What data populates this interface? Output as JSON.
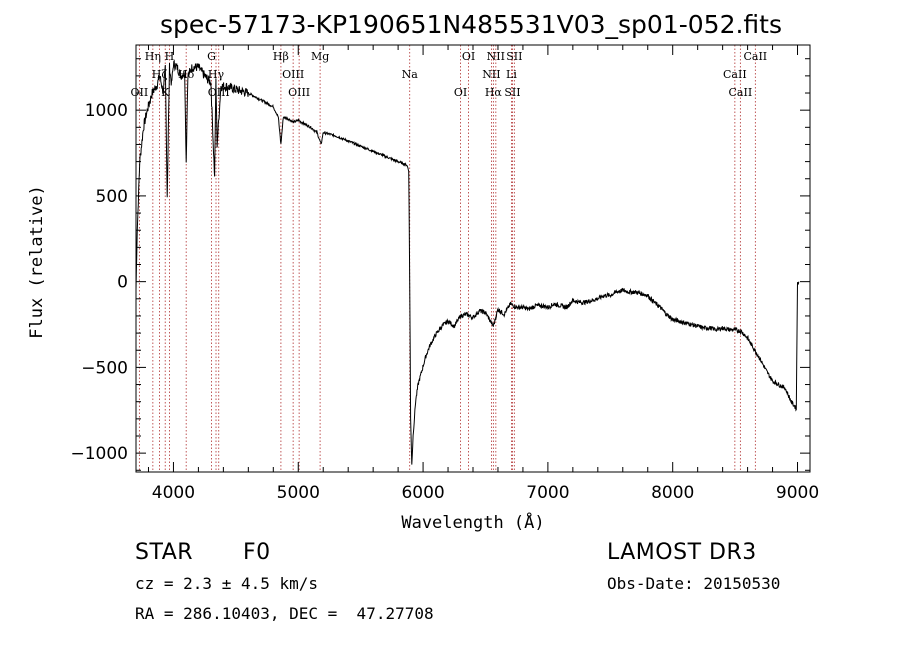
{
  "chart_data": {
    "type": "line",
    "title": "spec-57173-KP190651N485531V03_sp01-052.fits",
    "xlabel": "Wavelength (Å)",
    "ylabel": "Flux (relative)",
    "xlim": [
      3700,
      9100
    ],
    "ylim": [
      -1110,
      1380
    ],
    "xticks": [
      4000,
      5000,
      6000,
      7000,
      8000,
      9000
    ],
    "xtick_labels": [
      "4000",
      "5000",
      "6000",
      "7000",
      "8000",
      "9000"
    ],
    "yticks": [
      -1000,
      -500,
      0,
      500,
      1000
    ],
    "ytick_labels": [
      "−1000",
      "−500",
      "0",
      "500",
      "1000"
    ],
    "series": [
      {
        "name": "spectrum",
        "x": [
          3700,
          3710,
          3730,
          3760,
          3790,
          3830,
          3870,
          3890,
          3920,
          3935,
          3950,
          3968,
          3985,
          4000,
          4030,
          4060,
          4090,
          4102,
          4115,
          4150,
          4200,
          4250,
          4300,
          4330,
          4340,
          4350,
          4380,
          4420,
          4500,
          4600,
          4700,
          4800,
          4840,
          4861,
          4880,
          4920,
          4960,
          5000,
          5050,
          5100,
          5150,
          5183,
          5200,
          5300,
          5400,
          5500,
          5600,
          5700,
          5800,
          5870,
          5885,
          5893,
          5900,
          5910,
          5920,
          5940,
          5960,
          5990,
          6020,
          6050,
          6100,
          6150,
          6200,
          6250,
          6300,
          6350,
          6400,
          6450,
          6500,
          6563,
          6600,
          6650,
          6700,
          6750,
          6800,
          6850,
          6900,
          6950,
          7000,
          7050,
          7100,
          7150,
          7200,
          7250,
          7300,
          7350,
          7400,
          7450,
          7500,
          7550,
          7600,
          7650,
          7700,
          7750,
          7800,
          7850,
          7900,
          7950,
          8000,
          8050,
          8100,
          8150,
          8200,
          8250,
          8300,
          8350,
          8400,
          8450,
          8500,
          8550,
          8600,
          8650,
          8700,
          8750,
          8800,
          8850,
          8900,
          8950,
          8990,
          9000,
          9010
        ],
        "values": [
          -50,
          300,
          700,
          900,
          1000,
          1100,
          1150,
          1200,
          1100,
          1250,
          500,
          1250,
          1150,
          1270,
          1250,
          1200,
          1220,
          700,
          1200,
          1250,
          1250,
          1200,
          1160,
          600,
          1180,
          800,
          1140,
          1140,
          1120,
          1100,
          1060,
          1020,
          960,
          800,
          960,
          950,
          930,
          940,
          920,
          900,
          870,
          800,
          870,
          850,
          820,
          790,
          760,
          730,
          700,
          680,
          650,
          0,
          -800,
          -1060,
          -900,
          -700,
          -600,
          -520,
          -440,
          -380,
          -310,
          -260,
          -230,
          -260,
          -200,
          -190,
          -210,
          -170,
          -180,
          -260,
          -160,
          -190,
          -130,
          -150,
          -150,
          -160,
          -140,
          -140,
          -150,
          -130,
          -140,
          -150,
          -110,
          -120,
          -120,
          -110,
          -100,
          -80,
          -80,
          -60,
          -50,
          -60,
          -60,
          -70,
          -80,
          -120,
          -150,
          -190,
          -220,
          -230,
          -240,
          -250,
          -260,
          -270,
          -270,
          -280,
          -270,
          -280,
          -280,
          -290,
          -330,
          -390,
          -450,
          -520,
          -580,
          -600,
          -620,
          -700,
          -740,
          0,
          0
        ]
      }
    ],
    "lines": [
      {
        "name": "Hη",
        "x": 3835
      },
      {
        "name": "Hζ",
        "x": 3889
      },
      {
        "name": "K",
        "x": 3934
      },
      {
        "name": "H",
        "x": 3968
      },
      {
        "name": "Hδ",
        "x": 4102
      },
      {
        "name": "OII",
        "x": 3727
      },
      {
        "name": "G",
        "x": 4305
      },
      {
        "name": "Hγ",
        "x": 4341
      },
      {
        "name": "OIII",
        "x": 4363
      },
      {
        "name": "Hβ",
        "x": 4861
      },
      {
        "name": "OIII",
        "x": 4959
      },
      {
        "name": "OIII",
        "x": 5007
      },
      {
        "name": "Mg",
        "x": 5175
      },
      {
        "name": "Na",
        "x": 5893
      },
      {
        "name": "OI",
        "x": 6300
      },
      {
        "name": "OI",
        "x": 6364
      },
      {
        "name": "NII",
        "x": 6548
      },
      {
        "name": "Hα",
        "x": 6563
      },
      {
        "name": "NII",
        "x": 6583
      },
      {
        "name": "Li",
        "x": 6708
      },
      {
        "name": "SII",
        "x": 6716
      },
      {
        "name": "SII",
        "x": 6731
      },
      {
        "name": "CaII",
        "x": 8498
      },
      {
        "name": "CaII",
        "x": 8542
      },
      {
        "name": "CaII",
        "x": 8662
      }
    ]
  },
  "info": {
    "class": "STAR",
    "subclass": "F0",
    "survey": "LAMOST DR3",
    "cz": "cz = 2.3 ± 4.5 km/s",
    "obs_date": "Obs-Date: 20150530",
    "coords": "RA = 286.10403, DEC =  47.27708"
  }
}
